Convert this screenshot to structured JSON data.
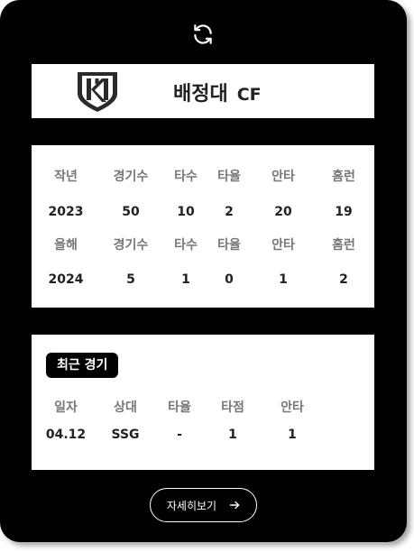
{
  "player": {
    "name": "배정대",
    "position": "CF"
  },
  "stats": {
    "prev": {
      "headers": [
        "작년",
        "경기수",
        "타수",
        "타율",
        "안타",
        "홈런"
      ],
      "values": [
        "2023",
        "50",
        "10",
        "2",
        "20",
        "19"
      ]
    },
    "curr": {
      "headers": [
        "올해",
        "경기수",
        "타수",
        "타율",
        "안타",
        "홈런"
      ],
      "values": [
        "2024",
        "5",
        "1",
        "0",
        "1",
        "2"
      ]
    }
  },
  "recent": {
    "title": "최근 경기",
    "headers": [
      "일자",
      "상대",
      "타율",
      "타점",
      "안타"
    ],
    "values": [
      "04.12",
      "SSG",
      "-",
      "1",
      "1"
    ]
  },
  "detail_button": {
    "label": "자세히보기"
  },
  "icons": {
    "refresh": "refresh-icon",
    "logo": "team-logo-icon",
    "arrow": "arrow-right-icon"
  },
  "colors": {
    "card": "#000000",
    "panel": "#ffffff",
    "header_text": "#777777",
    "value_text": "#222222"
  }
}
